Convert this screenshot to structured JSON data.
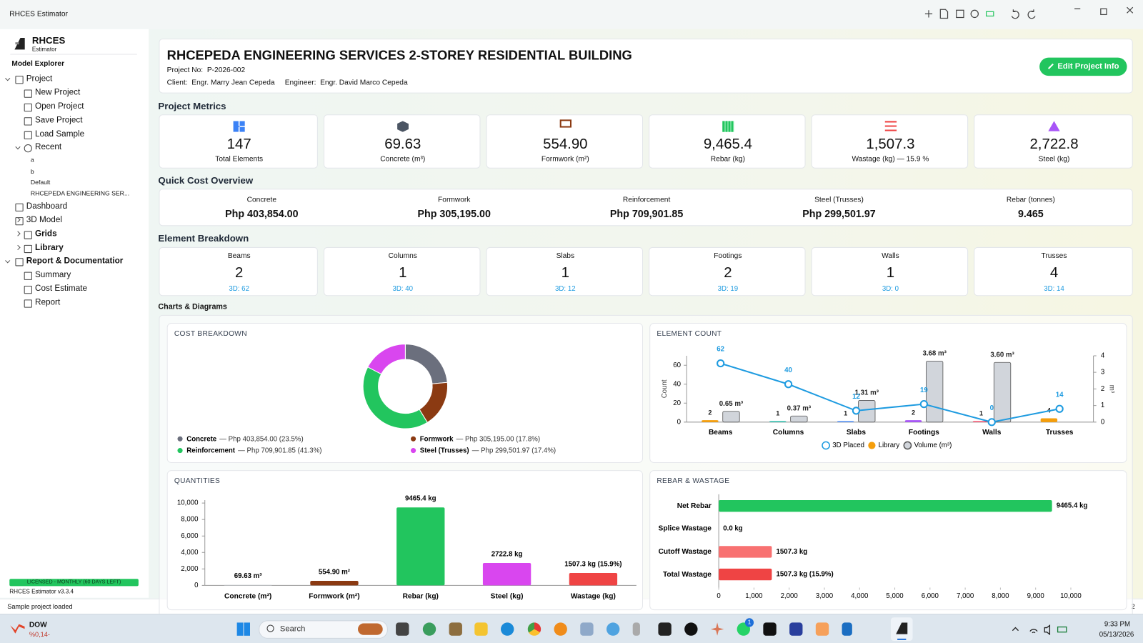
{
  "window": {
    "title": "RHCES Estimator"
  },
  "sidebar": {
    "logo": "RHCES",
    "logo_sub": "Estimator",
    "heading": "Model Explorer",
    "tree": [
      "Project",
      "New Project",
      "Open Project",
      "Save Project",
      "Load Sample",
      "Recent",
      "a",
      "b",
      "Default",
      "RHCEPEDA ENGINEERING SER...",
      "Dashboard",
      "3D Model",
      "Grids",
      "Library",
      "Report & Documentatior",
      "Summary",
      "Cost Estimate",
      "Report"
    ],
    "license": "LICENSED - MONTHLY (60 DAYS LEFT)",
    "version": "RHCES Estimator v3.3.4"
  },
  "status": {
    "message": "Sample project loaded",
    "count": "2"
  },
  "header": {
    "title": "RHCEPEDA ENGINEERING SERVICES 2-STOREY RESIDENTIAL BUILDING",
    "project_no_label": "Project No:",
    "project_no": "P-2026-002",
    "client_label": "Client:",
    "client": "Engr. Marry Jean Cepeda",
    "engineer_label": "Engineer:",
    "engineer": "Engr. David Marco Cepeda",
    "button": "Edit Project Info"
  },
  "metrics": {
    "title": "Project Metrics",
    "items": [
      {
        "value": "147",
        "label": "Total Elements"
      },
      {
        "value": "69.63",
        "label": "Concrete (m³)"
      },
      {
        "value": "554.90",
        "label": "Formwork (m²)"
      },
      {
        "value": "9,465.4",
        "label": "Rebar (kg)"
      },
      {
        "value": "1,507.3",
        "label": "Wastage (kg) —  15.9 %"
      },
      {
        "value": "2,722.8",
        "label": "Steel (kg)"
      }
    ]
  },
  "cost_overview": {
    "title": "Quick Cost Overview",
    "items": [
      {
        "label": "Concrete",
        "value": "Php 403,854.00"
      },
      {
        "label": "Formwork",
        "value": "Php 305,195.00"
      },
      {
        "label": "Reinforcement",
        "value": "Php 709,901.85"
      },
      {
        "label": "Steel (Trusses)",
        "value": "Php 299,501.97"
      },
      {
        "label": "Rebar (tonnes)",
        "value": "9.465"
      }
    ]
  },
  "element_breakdown": {
    "title": "Element Breakdown",
    "items": [
      {
        "label": "Beams",
        "count": "2",
        "placed": "3D: 62"
      },
      {
        "label": "Columns",
        "count": "1",
        "placed": "3D: 40"
      },
      {
        "label": "Slabs",
        "count": "1",
        "placed": "3D: 12"
      },
      {
        "label": "Footings",
        "count": "2",
        "placed": "3D: 19"
      },
      {
        "label": "Walls",
        "count": "1",
        "placed": "3D: 0"
      },
      {
        "label": "Trusses",
        "count": "4",
        "placed": "3D: 14"
      }
    ]
  },
  "charts_title": "Charts & Diagrams",
  "chart_data": [
    {
      "type": "pie",
      "title": "COST BREAKDOWN",
      "donut": true,
      "categories": [
        "Concrete",
        "Formwork",
        "Reinforcement",
        "Steel (Trusses)"
      ],
      "values": [
        403854.0,
        305195.0,
        709901.85,
        299501.97
      ],
      "value_labels": [
        "— Php 403,854.00 (23.5%)",
        "— Php 305,195.00 (17.8%)",
        "— Php 709,901.85 (41.3%)",
        "— Php 299,501.97 (17.4%)"
      ],
      "colors": [
        "#6b6f7d",
        "#8b3a12",
        "#22c55e",
        "#d946ef"
      ]
    },
    {
      "type": "combo",
      "title": "ELEMENT COUNT",
      "categories": [
        "Beams",
        "Columns",
        "Slabs",
        "Footings",
        "Walls",
        "Trusses"
      ],
      "ylabel": "Count",
      "y2label": "m³",
      "ylim": [
        0,
        70
      ],
      "yticks": [
        0,
        20,
        40,
        60
      ],
      "y2lim": [
        0,
        4
      ],
      "y2ticks": [
        0,
        1,
        2,
        3,
        4
      ],
      "series": [
        {
          "name": "3D Placed",
          "type": "line",
          "color": "#1e9be0",
          "values": [
            62,
            40,
            12,
            19,
            0,
            14
          ]
        },
        {
          "name": "Library",
          "type": "bar",
          "color": "#f59e0b",
          "colors": [
            "#f59e0b",
            "#14b8a6",
            "#3b82f6",
            "#a855f7",
            "#f43f5e",
            "#f59e0b"
          ],
          "values": [
            2,
            1,
            1,
            2,
            1,
            4
          ]
        },
        {
          "name": "Volume (m³)",
          "type": "bar",
          "axis": "y2",
          "color": "#d1d5db",
          "values": [
            0.65,
            0.37,
            1.31,
            3.68,
            3.6,
            null
          ],
          "value_labels": [
            "0.65 m³",
            "0.37 m³",
            "1.31 m³",
            "3.68 m³",
            "3.60 m³",
            null
          ]
        }
      ]
    },
    {
      "type": "bar",
      "title": "QUANTITIES",
      "categories": [
        "Concrete (m³)",
        "Formwork (m²)",
        "Rebar (kg)",
        "Steel (kg)",
        "Wastage (kg)"
      ],
      "values": [
        69.63,
        554.9,
        9465.4,
        2722.8,
        1507.3
      ],
      "value_labels": [
        "69.63 m³",
        "554.90 m²",
        "9465.4 kg",
        "2722.8 kg",
        "1507.3 kg (15.9%)"
      ],
      "colors": [
        "#d1d5db",
        "#8b3a12",
        "#22c55e",
        "#d946ef",
        "#ef4444"
      ],
      "ylim": [
        0,
        10000
      ],
      "yticks": [
        0,
        {
          "value": 2000,
          "label": "2,000"
        },
        {
          "value": 4000,
          "label": "4,000"
        },
        {
          "value": 6000,
          "label": "6,000"
        },
        {
          "value": 8000,
          "label": "8,000"
        },
        {
          "value": 10000,
          "label": "10,000"
        }
      ]
    },
    {
      "type": "bar",
      "horizontal": true,
      "title": "REBAR & WASTAGE",
      "categories": [
        "Net Rebar",
        "Splice Wastage",
        "Cutoff Wastage",
        "Total Wastage"
      ],
      "values": [
        9465.4,
        0,
        1507.3,
        1507.3
      ],
      "value_labels": [
        "9465.4 kg",
        "0.0 kg",
        "1507.3 kg",
        "1507.3 kg (15.9%)"
      ],
      "colors": [
        "#22c55e",
        "#f87171",
        "#f87171",
        "#ef4444"
      ],
      "xlim": [
        0,
        10000
      ],
      "xticks": [
        0,
        {
          "value": 1000,
          "label": "1,000"
        },
        {
          "value": 2000,
          "label": "2,000"
        },
        {
          "value": 3000,
          "label": "3,000"
        },
        {
          "value": 4000,
          "label": "4,000"
        },
        {
          "value": 5000,
          "label": "5,000"
        },
        {
          "value": 6000,
          "label": "6,000"
        },
        {
          "value": 7000,
          "label": "7,000"
        },
        {
          "value": 8000,
          "label": "8,000"
        },
        {
          "value": 9000,
          "label": "9,000"
        },
        {
          "value": 10000,
          "label": "10,000"
        }
      ]
    }
  ],
  "taskbar": {
    "stock": "DOW",
    "stock_change": "%0,14-",
    "search": "Search",
    "badge": "1",
    "time": "9:33 PM",
    "date": "05/13/2026"
  }
}
